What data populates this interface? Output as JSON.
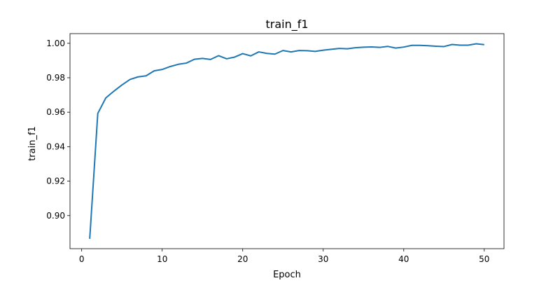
{
  "chart_data": {
    "type": "line",
    "title": "train_f1",
    "xlabel": "Epoch",
    "ylabel": "train_f1",
    "xlim": [
      -1.45,
      52.45
    ],
    "ylim": [
      0.8808,
      1.0056
    ],
    "xticks": [
      0,
      10,
      20,
      30,
      40,
      50
    ],
    "yticks": [
      0.9,
      0.92,
      0.94,
      0.96,
      0.98,
      1.0
    ],
    "ytick_labels": [
      "0.90",
      "0.92",
      "0.94",
      "0.96",
      "0.98",
      "1.00"
    ],
    "grid": false,
    "color": "#1f77b4",
    "series": [
      {
        "x": [
          1,
          2,
          3,
          4,
          5,
          6,
          7,
          8,
          9,
          10,
          11,
          12,
          13,
          14,
          15,
          16,
          17,
          18,
          19,
          20,
          21,
          22,
          23,
          24,
          25,
          26,
          27,
          28,
          29,
          30,
          31,
          32,
          33,
          34,
          35,
          36,
          37,
          38,
          39,
          40,
          41,
          42,
          43,
          44,
          45,
          46,
          47,
          48,
          49,
          50
        ],
        "values": [
          0.8865,
          0.9593,
          0.9683,
          0.9722,
          0.9758,
          0.979,
          0.9805,
          0.9811,
          0.984,
          0.9848,
          0.9865,
          0.9878,
          0.9885,
          0.9907,
          0.9912,
          0.9906,
          0.9928,
          0.991,
          0.992,
          0.994,
          0.9927,
          0.995,
          0.9941,
          0.9937,
          0.9958,
          0.995,
          0.9958,
          0.9957,
          0.9953,
          0.996,
          0.9965,
          0.997,
          0.9968,
          0.9974,
          0.9977,
          0.9979,
          0.9976,
          0.9982,
          0.9972,
          0.9978,
          0.9988,
          0.9988,
          0.9986,
          0.9983,
          0.9981,
          0.9993,
          0.9989,
          0.9989,
          0.9997,
          0.9992
        ]
      }
    ]
  }
}
